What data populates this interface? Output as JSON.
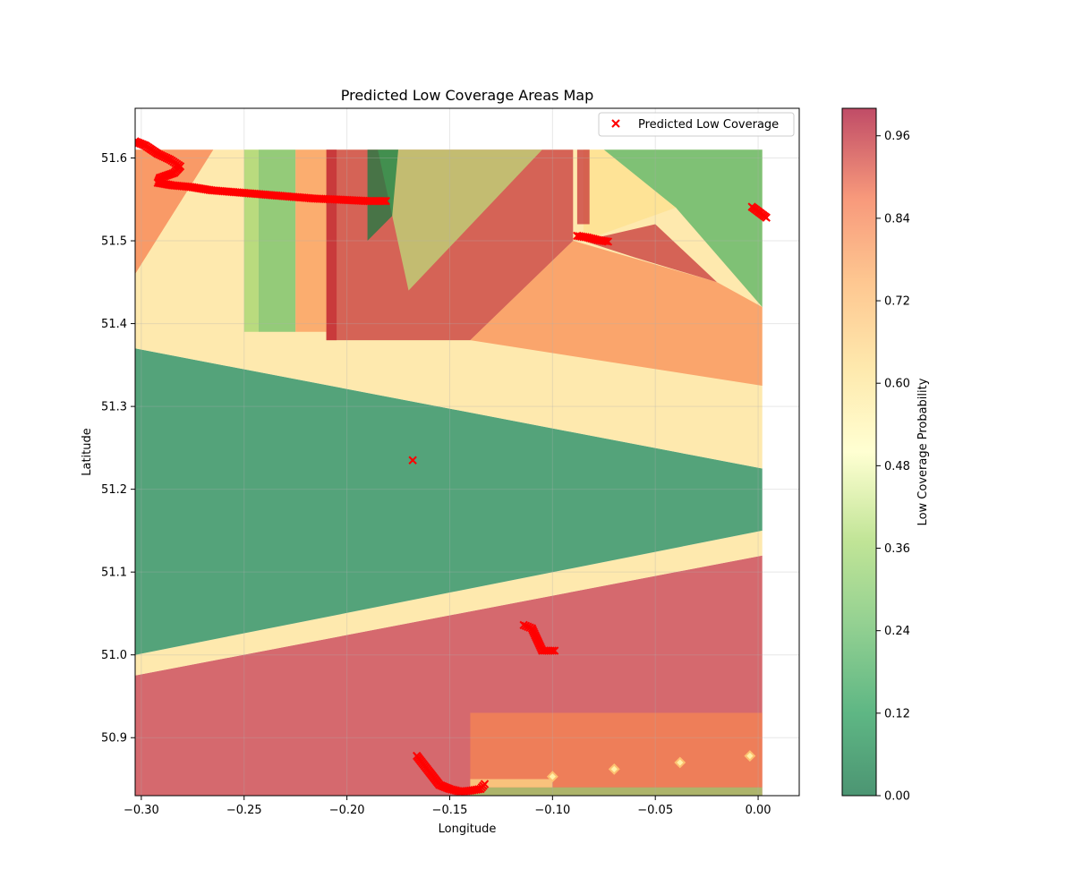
{
  "chart_data": {
    "type": "heatmap",
    "title": "Predicted Low Coverage Areas Map",
    "xlabel": "Longitude",
    "ylabel": "Latitude",
    "xlim": [
      -0.303,
      0.02
    ],
    "ylim": [
      50.83,
      51.66
    ],
    "xticks": [
      -0.3,
      -0.25,
      -0.2,
      -0.15,
      -0.1,
      -0.05,
      0.0
    ],
    "xtick_labels": [
      "−0.30",
      "−0.25",
      "−0.20",
      "−0.15",
      "−0.10",
      "−0.05",
      "0.00"
    ],
    "yticks": [
      50.9,
      51.0,
      51.1,
      51.2,
      51.3,
      51.4,
      51.5,
      51.6
    ],
    "ytick_labels": [
      "50.9",
      "51.0",
      "51.1",
      "51.2",
      "51.3",
      "51.4",
      "51.5",
      "51.6"
    ],
    "grid": true,
    "legend": {
      "placement": "top-right",
      "entries": [
        "Predicted Low Coverage"
      ]
    },
    "colorbar": {
      "label": "Low Coverage Probability",
      "range": [
        0,
        1
      ],
      "ticks": [
        0.0,
        0.12,
        0.24,
        0.36,
        0.48,
        0.6,
        0.72,
        0.84,
        0.96
      ],
      "tick_labels": [
        "0.00",
        "0.12",
        "0.24",
        "0.36",
        "0.48",
        "0.60",
        "0.72",
        "0.84",
        "0.96"
      ],
      "colormap": "RdYlGn_r",
      "alpha": 0.7
    },
    "regions": [
      {
        "value": 0.95,
        "polygon": [
          [
            -0.303,
            50.83
          ],
          [
            0.002,
            50.83
          ],
          [
            0.002,
            51.12
          ],
          [
            -0.303,
            50.975
          ]
        ]
      },
      {
        "value": 0.62,
        "polygon": [
          [
            -0.303,
            50.975
          ],
          [
            0.002,
            51.12
          ],
          [
            0.002,
            51.15
          ],
          [
            -0.303,
            51.0
          ]
        ]
      },
      {
        "value": 0.05,
        "polygon": [
          [
            -0.303,
            51.0
          ],
          [
            0.002,
            51.15
          ],
          [
            0.002,
            51.225
          ],
          [
            -0.303,
            51.37
          ]
        ]
      },
      {
        "value": 0.62,
        "polygon": [
          [
            -0.303,
            51.37
          ],
          [
            0.002,
            51.225
          ],
          [
            0.002,
            51.61
          ],
          [
            -0.303,
            51.61
          ]
        ]
      },
      {
        "value": 0.82,
        "polygon": [
          [
            -0.14,
            50.84
          ],
          [
            0.002,
            50.84
          ],
          [
            0.002,
            50.93
          ],
          [
            -0.14,
            50.93
          ]
        ]
      },
      {
        "value": 0.35,
        "polygon": [
          [
            -0.14,
            50.83
          ],
          [
            0.002,
            50.83
          ],
          [
            0.002,
            50.84
          ],
          [
            -0.14,
            50.84
          ]
        ]
      },
      {
        "value": 0.62,
        "polygon": [
          [
            -0.14,
            50.84
          ],
          [
            -0.1,
            50.84
          ],
          [
            -0.1,
            50.85
          ],
          [
            -0.14,
            50.85
          ]
        ]
      },
      {
        "value": 0.95,
        "polygon": [
          [
            -0.21,
            51.61
          ],
          [
            -0.09,
            51.61
          ],
          [
            -0.09,
            51.5
          ],
          [
            -0.14,
            51.38
          ],
          [
            -0.21,
            51.38
          ]
        ]
      },
      {
        "value": 0.82,
        "polygon": [
          [
            -0.14,
            51.38
          ],
          [
            -0.09,
            51.5
          ],
          [
            -0.02,
            51.45
          ],
          [
            0.002,
            51.42
          ],
          [
            0.002,
            51.325
          ],
          [
            -0.14,
            51.38
          ]
        ]
      },
      {
        "value": 0.95,
        "polygon": [
          [
            -0.085,
            51.5
          ],
          [
            -0.05,
            51.52
          ],
          [
            -0.02,
            51.45
          ],
          [
            -0.06,
            51.48
          ]
        ]
      },
      {
        "value": 0.62,
        "polygon": [
          [
            -0.085,
            51.61
          ],
          [
            -0.075,
            51.61
          ],
          [
            -0.04,
            51.54
          ],
          [
            -0.085,
            51.5
          ]
        ]
      },
      {
        "value": 0.95,
        "polygon": [
          [
            -0.088,
            51.61
          ],
          [
            -0.082,
            51.61
          ],
          [
            -0.082,
            51.52
          ],
          [
            -0.088,
            51.52
          ]
        ]
      },
      {
        "value": 0.2,
        "polygon": [
          [
            -0.075,
            51.61
          ],
          [
            0.002,
            51.61
          ],
          [
            0.002,
            51.42
          ],
          [
            -0.04,
            51.54
          ]
        ]
      },
      {
        "value": 0.4,
        "polygon": [
          [
            -0.185,
            51.61
          ],
          [
            -0.105,
            51.61
          ],
          [
            -0.17,
            51.44
          ]
        ]
      },
      {
        "value": 0.05,
        "polygon": [
          [
            -0.19,
            51.61
          ],
          [
            -0.175,
            51.61
          ],
          [
            -0.178,
            51.53
          ],
          [
            -0.19,
            51.5
          ]
        ]
      },
      {
        "value": 0.95,
        "polygon": [
          [
            -0.21,
            51.61
          ],
          [
            -0.205,
            51.61
          ],
          [
            -0.205,
            51.38
          ],
          [
            -0.21,
            51.38
          ]
        ]
      },
      {
        "value": 0.25,
        "polygon": [
          [
            -0.243,
            51.61
          ],
          [
            -0.225,
            51.61
          ],
          [
            -0.225,
            51.39
          ],
          [
            -0.243,
            51.39
          ]
        ]
      },
      {
        "value": 0.8,
        "polygon": [
          [
            -0.225,
            51.61
          ],
          [
            -0.21,
            51.61
          ],
          [
            -0.21,
            51.39
          ],
          [
            -0.225,
            51.39
          ]
        ]
      },
      {
        "value": 0.35,
        "polygon": [
          [
            -0.25,
            51.61
          ],
          [
            -0.243,
            51.61
          ],
          [
            -0.243,
            51.39
          ],
          [
            -0.25,
            51.39
          ]
        ]
      },
      {
        "value": 0.85,
        "polygon": [
          [
            -0.303,
            51.61
          ],
          [
            -0.265,
            51.61
          ],
          [
            -0.303,
            51.46
          ]
        ]
      }
    ],
    "edge_markers": [
      {
        "x": -0.1,
        "y": 50.853,
        "value": 0.7
      },
      {
        "x": -0.07,
        "y": 50.862,
        "value": 0.7
      },
      {
        "x": -0.038,
        "y": 50.87,
        "value": 0.7
      },
      {
        "x": -0.004,
        "y": 50.878,
        "value": 0.7
      }
    ],
    "series": [
      {
        "name": "Predicted Low Coverage",
        "marker": "x",
        "color": "#ff0000",
        "points": [
          [
            -0.303,
            51.62
          ],
          [
            -0.298,
            51.615
          ],
          [
            -0.292,
            51.605
          ],
          [
            -0.286,
            51.598
          ],
          [
            -0.281,
            51.59
          ],
          [
            -0.284,
            51.582
          ],
          [
            -0.291,
            51.576
          ],
          [
            -0.292,
            51.57
          ],
          [
            -0.285,
            51.567
          ],
          [
            -0.276,
            51.565
          ],
          [
            -0.266,
            51.561
          ],
          [
            -0.256,
            51.559
          ],
          [
            -0.246,
            51.557
          ],
          [
            -0.236,
            51.555
          ],
          [
            -0.226,
            51.553
          ],
          [
            -0.216,
            51.551
          ],
          [
            -0.206,
            51.55
          ],
          [
            -0.198,
            51.549
          ],
          [
            -0.19,
            51.548
          ],
          [
            -0.181,
            51.548
          ],
          [
            -0.168,
            51.235
          ],
          [
            -0.088,
            51.506
          ],
          [
            -0.083,
            51.504
          ],
          [
            -0.078,
            51.501
          ],
          [
            -0.073,
            51.499
          ],
          [
            -0.003,
            51.541
          ],
          [
            0.004,
            51.528
          ],
          [
            -0.114,
            51.036
          ],
          [
            -0.11,
            51.032
          ],
          [
            -0.105,
            51.005
          ],
          [
            -0.099,
            51.005
          ],
          [
            -0.166,
            50.878
          ],
          [
            -0.155,
            50.843
          ],
          [
            -0.15,
            50.838
          ],
          [
            -0.145,
            50.835
          ],
          [
            -0.14,
            50.836
          ],
          [
            -0.135,
            50.838
          ],
          [
            -0.133,
            50.844
          ]
        ]
      }
    ]
  },
  "colors": {
    "axes_edge": "#000000",
    "grid": "#b0b0b0",
    "marker": "#ff0000"
  }
}
